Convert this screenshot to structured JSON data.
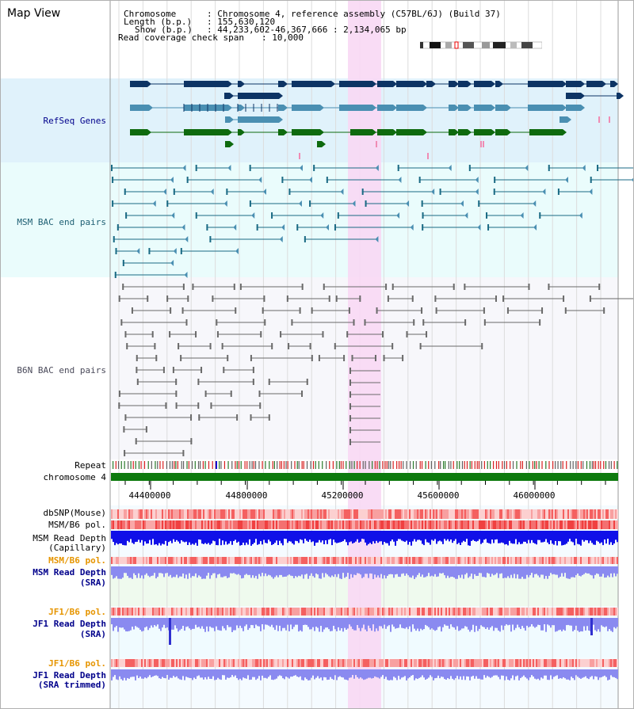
{
  "map_title": "Map View",
  "info": {
    "chromosome_key": "Chromosome",
    "chromosome_value": ": Chromosome 4, reference assembly (C57BL/6J) (Build 37)",
    "length_key": "Length (b.p.)",
    "length_value": ": 155,630,120",
    "show_key": "Show (b.p.)",
    "show_value": ": 44,233,602-46,367,666 : 2,134,065 bp",
    "coverage_key": "Read coverage check span",
    "coverage_value": ": 10,000"
  },
  "tracks": {
    "refseq_label": "RefSeq Genes",
    "msm_bac_label": "MSM BAC end pairs",
    "b6n_bac_label": "B6N BAC end pairs",
    "repeat_label": "Repeat",
    "chromosome_label": "chromosome 4",
    "dbsnp_label": "dbSNP(Mouse)",
    "msm_b6_pol_label": "MSM/B6 pol.",
    "msm_depth_cap_label_1": "MSM Read Depth",
    "msm_depth_cap_label_2": "(Capillary)",
    "msm_b6_pol2_label": "MSM/B6 pol.",
    "msm_depth_sra_label_1": "MSM Read Depth",
    "msm_depth_sra_label_2": "(SRA)",
    "jf1_pol_label": "JF1/B6 pol.",
    "jf1_depth_sra_label_1": "JF1 Read Depth",
    "jf1_depth_sra_label_2": "(SRA)",
    "jf1_pol2_label": "JF1/B6 pol.",
    "jf1_depth_trim_label_1": "JF1 Read Depth",
    "jf1_depth_trim_label_2": "(SRA trimmed)"
  },
  "axis_ticks": [
    "44400000",
    "44800000",
    "45200000",
    "45600000",
    "46000000"
  ],
  "colors": {
    "refseq_bg": "#e0f2fb",
    "msm_bac_bg": "#eafcfc",
    "b6n_bg": "#f7f7fb",
    "highlight": "#f8d8f4",
    "gene_navy": "#0d3464",
    "gene_steel": "#4a8fb2",
    "gene_green": "#0e6a0e",
    "msm_bac": "#1a6a84",
    "b6n_bac": "#6a6a6a",
    "chromosome_bar": "#0d7a0d",
    "depth_blue": "#1010e8",
    "depth_light": "#8a8af0",
    "label_blue": "#00008b",
    "label_orange": "#e69500",
    "label_teal": "#1e5f73"
  }
}
